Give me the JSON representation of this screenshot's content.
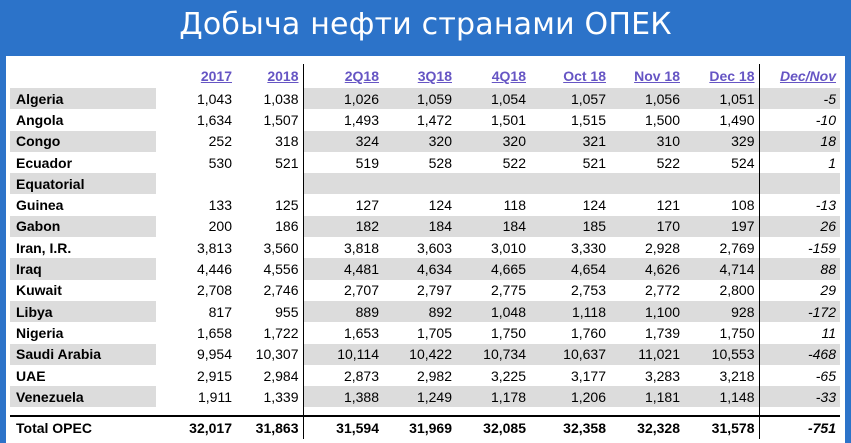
{
  "banner": {
    "title": "Добыча нефти странами ОПЕК"
  },
  "table": {
    "headers": [
      "",
      "2017",
      "2018",
      "2Q18",
      "3Q18",
      "4Q18",
      "Oct 18",
      "Nov 18",
      "Dec 18",
      "Dec/Nov"
    ],
    "rows": [
      {
        "country": "Algeria",
        "values": [
          "1,043",
          "1,038",
          "1,026",
          "1,059",
          "1,054",
          "1,057",
          "1,056",
          "1,051",
          "-5"
        ]
      },
      {
        "country": "Angola",
        "values": [
          "1,634",
          "1,507",
          "1,493",
          "1,472",
          "1,501",
          "1,515",
          "1,500",
          "1,490",
          "-10"
        ]
      },
      {
        "country": "Congo",
        "values": [
          "252",
          "318",
          "324",
          "320",
          "320",
          "321",
          "310",
          "329",
          "18"
        ]
      },
      {
        "country": "Ecuador",
        "values": [
          "530",
          "521",
          "519",
          "528",
          "522",
          "521",
          "522",
          "524",
          "1"
        ]
      },
      {
        "country": "Equatorial",
        "values": [
          "",
          "",
          "",
          "",
          "",
          "",
          "",
          "",
          ""
        ]
      },
      {
        "country": "Guinea",
        "values": [
          "133",
          "125",
          "127",
          "124",
          "118",
          "124",
          "121",
          "108",
          "-13"
        ]
      },
      {
        "country": "Gabon",
        "values": [
          "200",
          "186",
          "182",
          "184",
          "184",
          "185",
          "170",
          "197",
          "26"
        ]
      },
      {
        "country": "Iran, I.R.",
        "values": [
          "3,813",
          "3,560",
          "3,818",
          "3,603",
          "3,010",
          "3,330",
          "2,928",
          "2,769",
          "-159"
        ]
      },
      {
        "country": "Iraq",
        "values": [
          "4,446",
          "4,556",
          "4,481",
          "4,634",
          "4,665",
          "4,654",
          "4,626",
          "4,714",
          "88"
        ]
      },
      {
        "country": "Kuwait",
        "values": [
          "2,708",
          "2,746",
          "2,707",
          "2,797",
          "2,775",
          "2,753",
          "2,772",
          "2,800",
          "29"
        ]
      },
      {
        "country": "Libya",
        "values": [
          "817",
          "955",
          "889",
          "892",
          "1,048",
          "1,118",
          "1,100",
          "928",
          "-172"
        ]
      },
      {
        "country": "Nigeria",
        "values": [
          "1,658",
          "1,722",
          "1,653",
          "1,705",
          "1,750",
          "1,760",
          "1,739",
          "1,750",
          "11"
        ]
      },
      {
        "country": "Saudi Arabia",
        "values": [
          "9,954",
          "10,307",
          "10,114",
          "10,422",
          "10,734",
          "10,637",
          "11,021",
          "10,553",
          "-468"
        ]
      },
      {
        "country": "UAE",
        "values": [
          "2,915",
          "2,984",
          "2,873",
          "2,982",
          "3,225",
          "3,177",
          "3,283",
          "3,218",
          "-65"
        ]
      },
      {
        "country": "Venezuela",
        "values": [
          "1,911",
          "1,339",
          "1,388",
          "1,249",
          "1,178",
          "1,206",
          "1,181",
          "1,148",
          "-33"
        ]
      }
    ],
    "total": {
      "country": "Total  OPEC",
      "values": [
        "32,017",
        "31,863",
        "31,594",
        "31,969",
        "32,085",
        "32,358",
        "32,328",
        "31,578",
        "-751"
      ]
    }
  }
}
